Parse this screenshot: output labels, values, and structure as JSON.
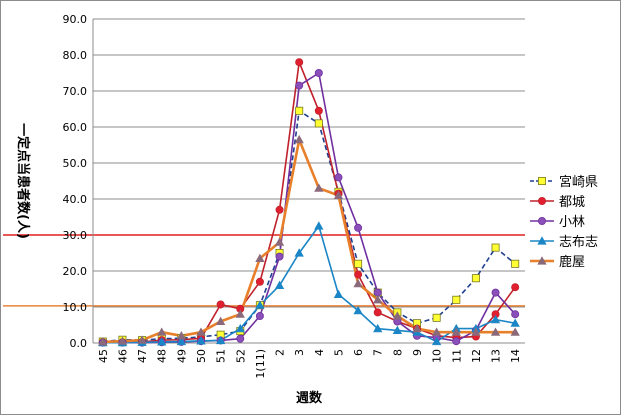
{
  "chart_data": {
    "type": "line",
    "title": "",
    "ylabel": "一定点当患者数(人)",
    "xlabel": "週数",
    "ylim": [
      0,
      90
    ],
    "yticks": [
      "0.0",
      "10.0",
      "20.0",
      "30.0",
      "40.0",
      "50.0",
      "60.0",
      "70.0",
      "80.0",
      "90.0"
    ],
    "categories": [
      "45",
      "46",
      "47",
      "48",
      "49",
      "50",
      "51",
      "52",
      "1(11)",
      "2",
      "3",
      "4",
      "5",
      "6",
      "7",
      "8",
      "9",
      "10",
      "11",
      "12",
      "13",
      "14"
    ],
    "grid": true,
    "legend_position": "right",
    "reference_lines": [
      {
        "value": 30,
        "color": "#e0201e"
      },
      {
        "value": 10.3,
        "color": "#e8843a"
      }
    ],
    "series": [
      {
        "name": "宮崎県",
        "color": "#1f3f8f",
        "marker": "square",
        "marker_fill": "#ffff33",
        "dashed": true,
        "values": [
          0.4,
          0.9,
          0.8,
          1.2,
          1.3,
          1.7,
          2.3,
          3.3,
          10.5,
          25.0,
          64.5,
          61.0,
          42.0,
          22.0,
          14.0,
          8.5,
          5.5,
          7.0,
          12.0,
          18.0,
          26.5,
          22.0
        ]
      },
      {
        "name": "都城",
        "color": "#c0202a",
        "marker": "circle",
        "marker_fill": "#e02030",
        "dashed": false,
        "values": [
          0.2,
          0.2,
          0.3,
          0.8,
          0.9,
          1.3,
          10.7,
          9.5,
          17.0,
          37.0,
          78.0,
          64.5,
          41.5,
          19.0,
          8.5,
          6.0,
          4.0,
          2.0,
          1.5,
          1.8,
          8.0,
          15.5
        ]
      },
      {
        "name": "小林",
        "color": "#7030a0",
        "marker": "circle",
        "marker_fill": "#8a4fb8",
        "dashed": false,
        "values": [
          0.1,
          0.1,
          0.1,
          0.2,
          0.3,
          0.5,
          0.7,
          1.2,
          7.5,
          24.0,
          71.5,
          75.0,
          46.0,
          32.0,
          14.0,
          6.0,
          2.0,
          1.5,
          0.5,
          3.5,
          14.0,
          8.0
        ]
      },
      {
        "name": "志布志",
        "color": "#1b86c6",
        "marker": "triangle",
        "marker_fill": "#1b86c6",
        "dashed": false,
        "values": [
          0.1,
          0.1,
          0.2,
          0.3,
          0.4,
          0.6,
          0.7,
          4.0,
          10.5,
          16.0,
          25.0,
          32.5,
          13.5,
          9.0,
          4.0,
          3.5,
          3.0,
          0.4,
          4.0,
          4.0,
          6.5,
          5.5
        ]
      },
      {
        "name": "鹿屋",
        "color": "#e87f2a",
        "marker": "triangle",
        "marker_fill": "#8a6a7a",
        "dashed": false,
        "values": [
          0.3,
          0.5,
          0.8,
          3.0,
          2.0,
          3.0,
          6.0,
          8.0,
          23.5,
          28.0,
          56.5,
          43.0,
          41.0,
          16.5,
          12.0,
          7.5,
          4.0,
          3.0,
          3.0,
          3.0,
          3.0,
          3.0
        ]
      }
    ]
  }
}
